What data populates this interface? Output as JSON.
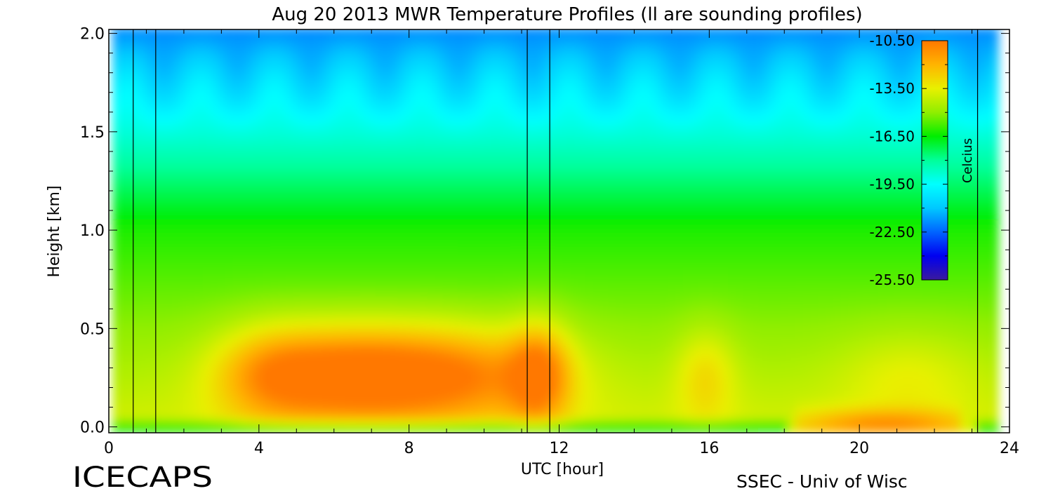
{
  "chart_data": {
    "type": "heatmap",
    "title": "Aug 20 2013 MWR Temperature Profiles (ll are sounding profiles)",
    "xlabel": "UTC [hour]",
    "ylabel": "Height [km]",
    "xlim": [
      0,
      24
    ],
    "ylim": [
      -0.03,
      2.02
    ],
    "x_ticks": [
      "0",
      "4",
      "8",
      "12",
      "16",
      "20",
      "24"
    ],
    "x_tick_values": [
      0,
      4,
      8,
      12,
      16,
      20,
      24
    ],
    "y_ticks": [
      "0.0",
      "0.5",
      "1.0",
      "1.5",
      "2.0"
    ],
    "y_tick_values": [
      0,
      0.5,
      1,
      1.5,
      2
    ],
    "data_x_range": [
      0.1,
      23.7
    ],
    "sounding_profiles_utc": [
      0.65,
      1.25,
      11.15,
      11.75,
      23.15
    ],
    "colorbar": {
      "label": "Celcius",
      "ticks": [
        "-10.50",
        "-13.50",
        "-16.50",
        "-19.50",
        "-22.50",
        "-25.50"
      ],
      "tick_values": [
        -10.5,
        -13.5,
        -16.5,
        -19.5,
        -22.5,
        -25.5
      ],
      "range": [
        -25.5,
        -10.5
      ],
      "colors": [
        "#3a1a9e",
        "#0000f0",
        "#0064ff",
        "#00c8ff",
        "#00ffff",
        "#00ff9a",
        "#00ee00",
        "#90ee00",
        "#e8f000",
        "#ffb400",
        "#ff7800"
      ]
    },
    "grid": false
  },
  "footer": {
    "brand": "ICECAPS",
    "credit": "SSEC - Univ of Wisc"
  }
}
